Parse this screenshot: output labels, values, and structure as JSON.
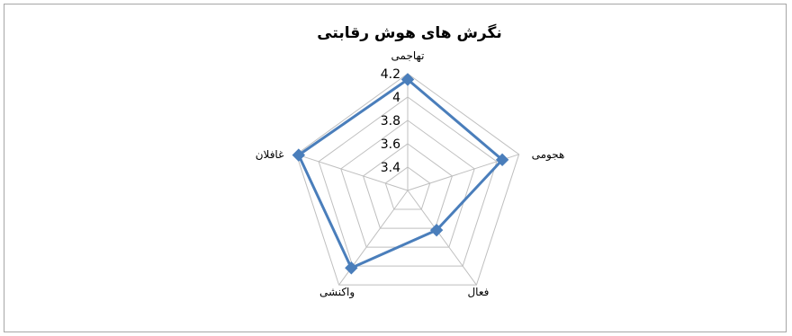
{
  "chart_data": {
    "type": "radar",
    "title": "نگرش های هوش رقابتی",
    "categories": [
      "تهاجمی",
      "هجومی",
      "فعال",
      "واکنشی",
      "غافلان"
    ],
    "series": [
      {
        "values": [
          4.15,
          4.05,
          3.62,
          4.02,
          4.18
        ]
      }
    ],
    "rlim": [
      3.2,
      4.2
    ],
    "ticks": [
      "3.4",
      "3.6",
      "3.8",
      "4",
      "4.2"
    ],
    "tick_values": [
      3.4,
      3.6,
      3.8,
      4.0,
      4.2
    ],
    "grid": true,
    "legend": "none",
    "colors": {
      "series": "#4a7ebb",
      "grid": "#bfbfbf"
    }
  }
}
